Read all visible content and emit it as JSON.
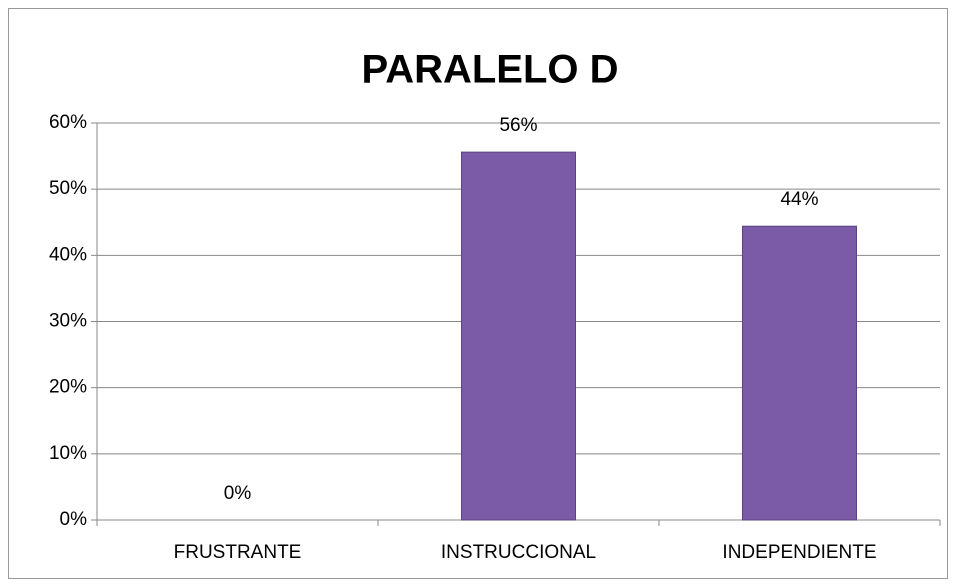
{
  "chart_data": {
    "type": "bar",
    "title": "PARALELO D",
    "categories": [
      "FRUSTRANTE",
      "INSTRUCCIONAL",
      "INDEPENDIENTE"
    ],
    "values": [
      0,
      55.6,
      44.4
    ],
    "value_labels": [
      "0%",
      "56%",
      "44%"
    ],
    "color": "#7b5ba8",
    "ylim": [
      0,
      60
    ],
    "yticks": [
      {
        "value": 0,
        "label": "0%"
      },
      {
        "value": 10,
        "label": "10%"
      },
      {
        "value": 20,
        "label": "20%"
      },
      {
        "value": 30,
        "label": "30%"
      },
      {
        "value": 40,
        "label": "40%"
      },
      {
        "value": 50,
        "label": "50%"
      },
      {
        "value": 60,
        "label": "60%"
      }
    ],
    "grid": true
  }
}
